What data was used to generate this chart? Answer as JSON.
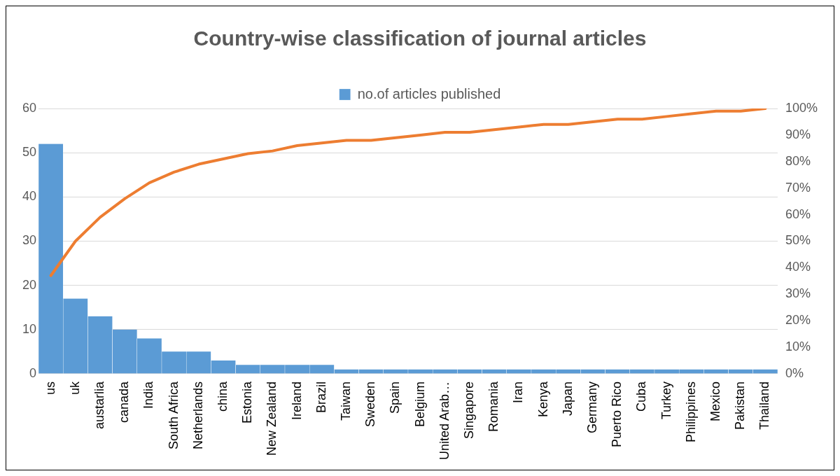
{
  "chart_data": {
    "type": "bar",
    "title": "Country-wise classification of journal articles",
    "categories": [
      "us",
      "uk",
      "austarlia",
      "canada",
      "India",
      "South Africa",
      "Netherlands",
      "china",
      "Estonia",
      "New Zealand",
      "Ireland",
      "Brazil",
      "Taiwan",
      "Sweden",
      "Spain",
      "Belgium",
      "United Arab…",
      "Singapore",
      "Romania",
      "Iran",
      "Kenya",
      "Japan",
      "Germany",
      "Puerto Rico",
      "Cuba",
      "Turkey",
      "Philippines",
      "Mexico",
      "Pakistan",
      "Thailand"
    ],
    "series": [
      {
        "name": "no.of articles published",
        "color": "#5b9bd5",
        "values": [
          52,
          17,
          13,
          10,
          8,
          5,
          5,
          3,
          2,
          2,
          2,
          2,
          1,
          1,
          1,
          1,
          1,
          1,
          1,
          1,
          1,
          1,
          1,
          1,
          1,
          1,
          1,
          1,
          1,
          1
        ]
      },
      {
        "type": "line",
        "axis": "y2",
        "color": "#ed7d31",
        "values": [
          37,
          50,
          59,
          66,
          72,
          76,
          79,
          81,
          83,
          84,
          86,
          87,
          88,
          88,
          89,
          90,
          91,
          91,
          92,
          93,
          94,
          94,
          95,
          96,
          96,
          97,
          98,
          99,
          99,
          100
        ]
      }
    ],
    "ylim": [
      0,
      60
    ],
    "yticks": [
      0,
      10,
      20,
      30,
      40,
      50,
      60
    ],
    "y2lim": [
      0,
      100
    ],
    "y2ticks": [
      {
        "value": 0,
        "label": "0%"
      },
      {
        "value": 10,
        "label": "10%"
      },
      {
        "value": 20,
        "label": "20%"
      },
      {
        "value": 30,
        "label": "30%"
      },
      {
        "value": 40,
        "label": "40%"
      },
      {
        "value": 50,
        "label": "50%"
      },
      {
        "value": 60,
        "label": "60%"
      },
      {
        "value": 70,
        "label": "70%"
      },
      {
        "value": 80,
        "label": "80%"
      },
      {
        "value": 90,
        "label": "90%"
      },
      {
        "value": 100,
        "label": "100%"
      }
    ],
    "grid": "y",
    "legend": "top",
    "marker": "none"
  }
}
